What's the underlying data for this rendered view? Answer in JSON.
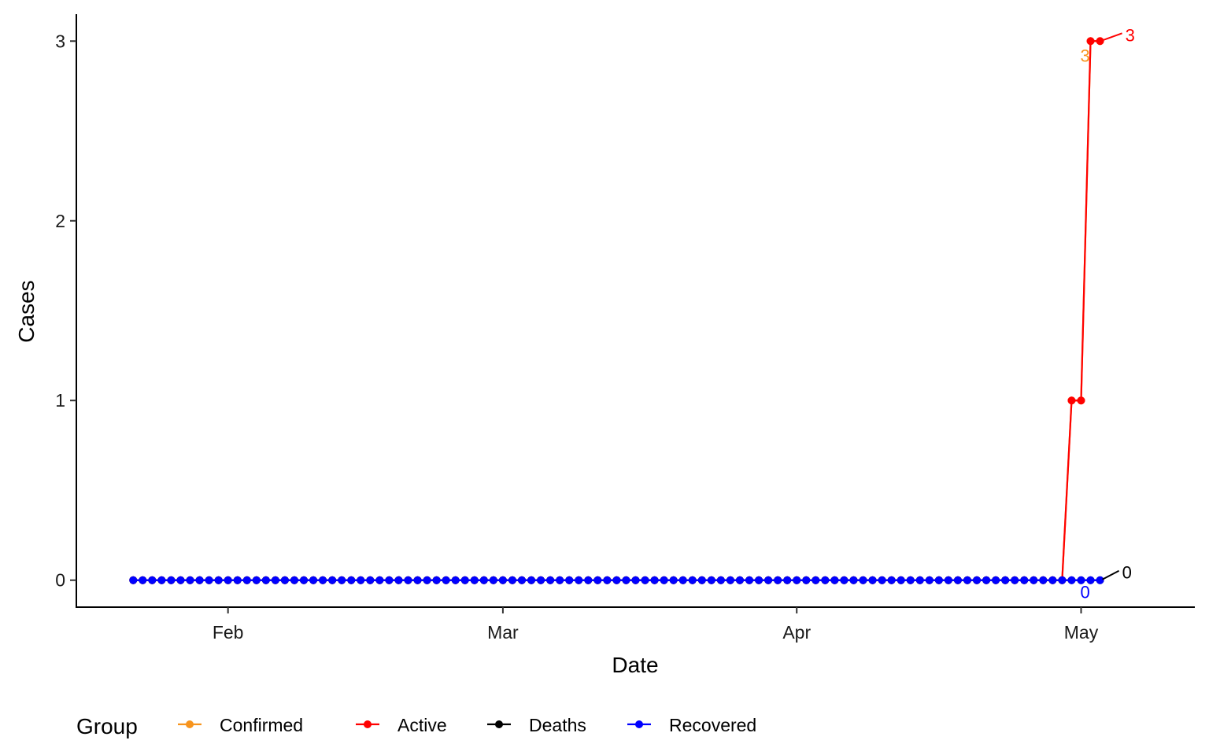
{
  "chart_data": {
    "type": "line",
    "xlabel": "Date",
    "ylabel": "Cases",
    "xlim": [
      "2020-01-16",
      "2020-05-13"
    ],
    "ylim": [
      -0.15,
      3.15
    ],
    "x_ticks": [
      {
        "date": "2020-02-01",
        "label": "Feb"
      },
      {
        "date": "2020-03-01",
        "label": "Mar"
      },
      {
        "date": "2020-04-01",
        "label": "Apr"
      },
      {
        "date": "2020-05-01",
        "label": "May"
      }
    ],
    "y_ticks": [
      0,
      1,
      2,
      3
    ],
    "x_start": "2020-01-22",
    "x_end": "2020-05-03",
    "legend": {
      "title": "Group",
      "position": "bottom"
    },
    "series": [
      {
        "name": "Confirmed",
        "color": "#F7941D",
        "value_changes": [
          {
            "date": "2020-01-22",
            "value": 0
          },
          {
            "date": "2020-04-30",
            "value": 1
          },
          {
            "date": "2020-05-02",
            "value": 3
          }
        ],
        "end_label": "3"
      },
      {
        "name": "Active",
        "color": "#FF0000",
        "value_changes": [
          {
            "date": "2020-01-22",
            "value": 0
          },
          {
            "date": "2020-04-30",
            "value": 1
          },
          {
            "date": "2020-05-02",
            "value": 3
          }
        ],
        "end_label": "3"
      },
      {
        "name": "Deaths",
        "color": "#000000",
        "value_changes": [
          {
            "date": "2020-01-22",
            "value": 0
          }
        ],
        "end_label": "0"
      },
      {
        "name": "Recovered",
        "color": "#0000FF",
        "value_changes": [
          {
            "date": "2020-01-22",
            "value": 0
          }
        ],
        "end_label": "0"
      }
    ]
  }
}
